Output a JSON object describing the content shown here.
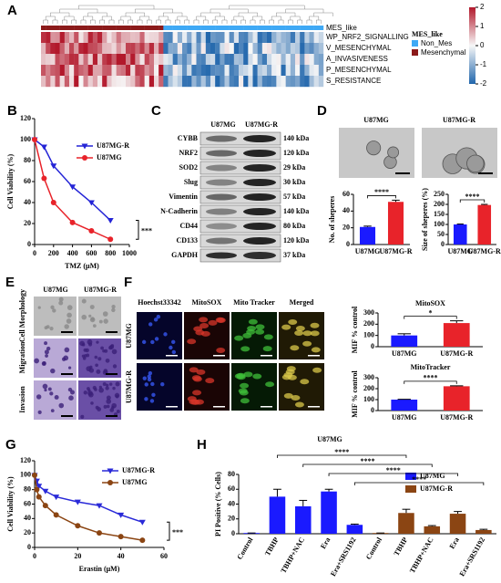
{
  "panel_labels": [
    "A",
    "B",
    "C",
    "D",
    "E",
    "F",
    "G",
    "H"
  ],
  "heatmap": {
    "annotation_title": "MES_like",
    "rows": [
      "WP_NRF2_SIGNALLING",
      "V_MESENCHYMAL",
      "A_INVASIVENESS",
      "P_MESENCHYMAL",
      "S_RESISTANCE"
    ],
    "legend_title": "MES_like",
    "legend": [
      "Non_Mes",
      "Mesenchymal"
    ],
    "colorbar_ticks": [
      2,
      1,
      0,
      -1,
      -2
    ]
  },
  "blot": {
    "columns": [
      "U87MG",
      "U87MG-R"
    ],
    "rows": [
      {
        "protein": "CYBB",
        "size": "140 kDa"
      },
      {
        "protein": "NRF2",
        "size": "120 kDa"
      },
      {
        "protein": "SOD2",
        "size": "29 kDa"
      },
      {
        "protein": "Slug",
        "size": "30 kDa"
      },
      {
        "protein": "Vimentin",
        "size": "57 kDa"
      },
      {
        "protein": "N-Cadherin",
        "size": "140 kDa"
      },
      {
        "protein": "CD44",
        "size": "80 kDa"
      },
      {
        "protein": "CD133",
        "size": "120 kDa"
      },
      {
        "protein": "GAPDH",
        "size": "37 kDa"
      }
    ]
  },
  "spheres": {
    "columns": [
      "U87MG",
      "U87MG-R"
    ]
  },
  "morphology": {
    "columns": [
      "U87MG",
      "U87MG-R"
    ],
    "rows": [
      "Cell Morphology",
      "Migration",
      "Invasion"
    ]
  },
  "fluorescence": {
    "columns": [
      "Hoechst33342",
      "MitoSOX",
      "Mito Tracker",
      "Merged"
    ],
    "rows": [
      "U87MG",
      "U87MG-R"
    ]
  },
  "chart_data": [
    {
      "type": "line",
      "x": [
        0,
        100,
        200,
        400,
        600,
        800
      ],
      "xlabel": "TMZ (μM)",
      "ylabel": "Cell Viability (%)",
      "xlim": [
        0,
        1000
      ],
      "xticks": [
        0,
        200,
        400,
        600,
        800,
        1000
      ],
      "ylim": [
        0,
        120
      ],
      "yticks": [
        0,
        20,
        40,
        60,
        80,
        100,
        120
      ],
      "series": [
        {
          "name": "U87MG-R",
          "color": "#2424d6",
          "marker": "triangle",
          "values": [
            100,
            93,
            75,
            55,
            40,
            23
          ]
        },
        {
          "name": "U87MG",
          "color": "#e8232a",
          "marker": "circle",
          "values": [
            100,
            63,
            40,
            21,
            13,
            5
          ]
        }
      ],
      "annotations": [
        "***"
      ]
    },
    {
      "type": "bar",
      "categories": [
        "U87MG",
        "U87MG-R"
      ],
      "ylabel": "No. of sheperes",
      "values": [
        21,
        51
      ],
      "errors": [
        1,
        2
      ],
      "colors": [
        "#1a1aff",
        "#e8232a"
      ],
      "ylim": [
        0,
        60
      ],
      "yticks": [
        0,
        20,
        40,
        60
      ],
      "annotations": [
        "****"
      ]
    },
    {
      "type": "bar",
      "categories": [
        "U87MG",
        "U87MG-R"
      ],
      "ylabel": "Size of sheperes (%)",
      "values": [
        100,
        197
      ],
      "errors": [
        2,
        3
      ],
      "colors": [
        "#1a1aff",
        "#e8232a"
      ],
      "ylim": [
        0,
        250
      ],
      "yticks": [
        0,
        50,
        100,
        150,
        200,
        250
      ],
      "annotations": [
        "****"
      ]
    },
    {
      "type": "bar",
      "title": "MitoSOX",
      "categories": [
        "U87MG",
        "U87MG-R"
      ],
      "ylabel": "MIF % control",
      "values": [
        100,
        210
      ],
      "errors": [
        15,
        20
      ],
      "colors": [
        "#1a1aff",
        "#e8232a"
      ],
      "ylim": [
        0,
        300
      ],
      "yticks": [
        0,
        100,
        200,
        300
      ],
      "annotations": [
        "*"
      ]
    },
    {
      "type": "bar",
      "title": "MitoTracker",
      "categories": [
        "U87MG",
        "U87MG-R"
      ],
      "ylabel": "MIF % control",
      "values": [
        100,
        222
      ],
      "errors": [
        3,
        4
      ],
      "colors": [
        "#1a1aff",
        "#e8232a"
      ],
      "ylim": [
        0,
        300
      ],
      "yticks": [
        0,
        100,
        200,
        300
      ],
      "annotations": [
        "****"
      ]
    },
    {
      "type": "line",
      "x": [
        0,
        1,
        2,
        5,
        10,
        20,
        30,
        40,
        50
      ],
      "xlabel": "Erastin (μM)",
      "ylabel": "Cell Viability (%)",
      "xlim": [
        0,
        60
      ],
      "xticks": [
        0,
        20,
        40,
        60
      ],
      "ylim": [
        0,
        120
      ],
      "yticks": [
        0,
        20,
        40,
        60,
        80,
        100,
        120
      ],
      "series": [
        {
          "name": "U87MG-R",
          "color": "#2a2ad8",
          "marker": "triangle",
          "values": [
            100,
            92,
            85,
            78,
            70,
            63,
            58,
            45,
            35
          ]
        },
        {
          "name": "U87MG",
          "color": "#8b4513",
          "marker": "circle",
          "values": [
            100,
            80,
            70,
            58,
            45,
            30,
            20,
            15,
            10
          ]
        }
      ],
      "annotations": [
        "***"
      ]
    },
    {
      "type": "bar",
      "title": "U87MG",
      "ylabel": "PI Positive (% Cells)",
      "categories": [
        "Control",
        "TBHP",
        "TBHP+NAC",
        "Era",
        "Era+SRS1192",
        "Control",
        "TBHP",
        "TBHP+NAC",
        "Era",
        "Era+SRS1192"
      ],
      "ylim": [
        0,
        80
      ],
      "yticks": [
        0,
        20,
        40,
        60,
        80
      ],
      "series": [
        {
          "name": "U87MG",
          "color": "#1a1aff",
          "values": [
            1,
            50,
            37,
            57,
            12,
            null,
            null,
            null,
            null,
            null
          ],
          "errors": [
            0,
            10,
            8,
            3,
            1,
            null,
            null,
            null,
            null,
            null
          ]
        },
        {
          "name": "U87MG-R",
          "color": "#8b4513",
          "values": [
            null,
            null,
            null,
            null,
            null,
            1,
            28,
            10,
            27,
            5
          ],
          "errors": [
            null,
            null,
            null,
            null,
            null,
            0,
            5,
            1,
            3,
            1
          ]
        }
      ],
      "annotations": [
        "****",
        "****",
        "****",
        "****"
      ]
    }
  ]
}
